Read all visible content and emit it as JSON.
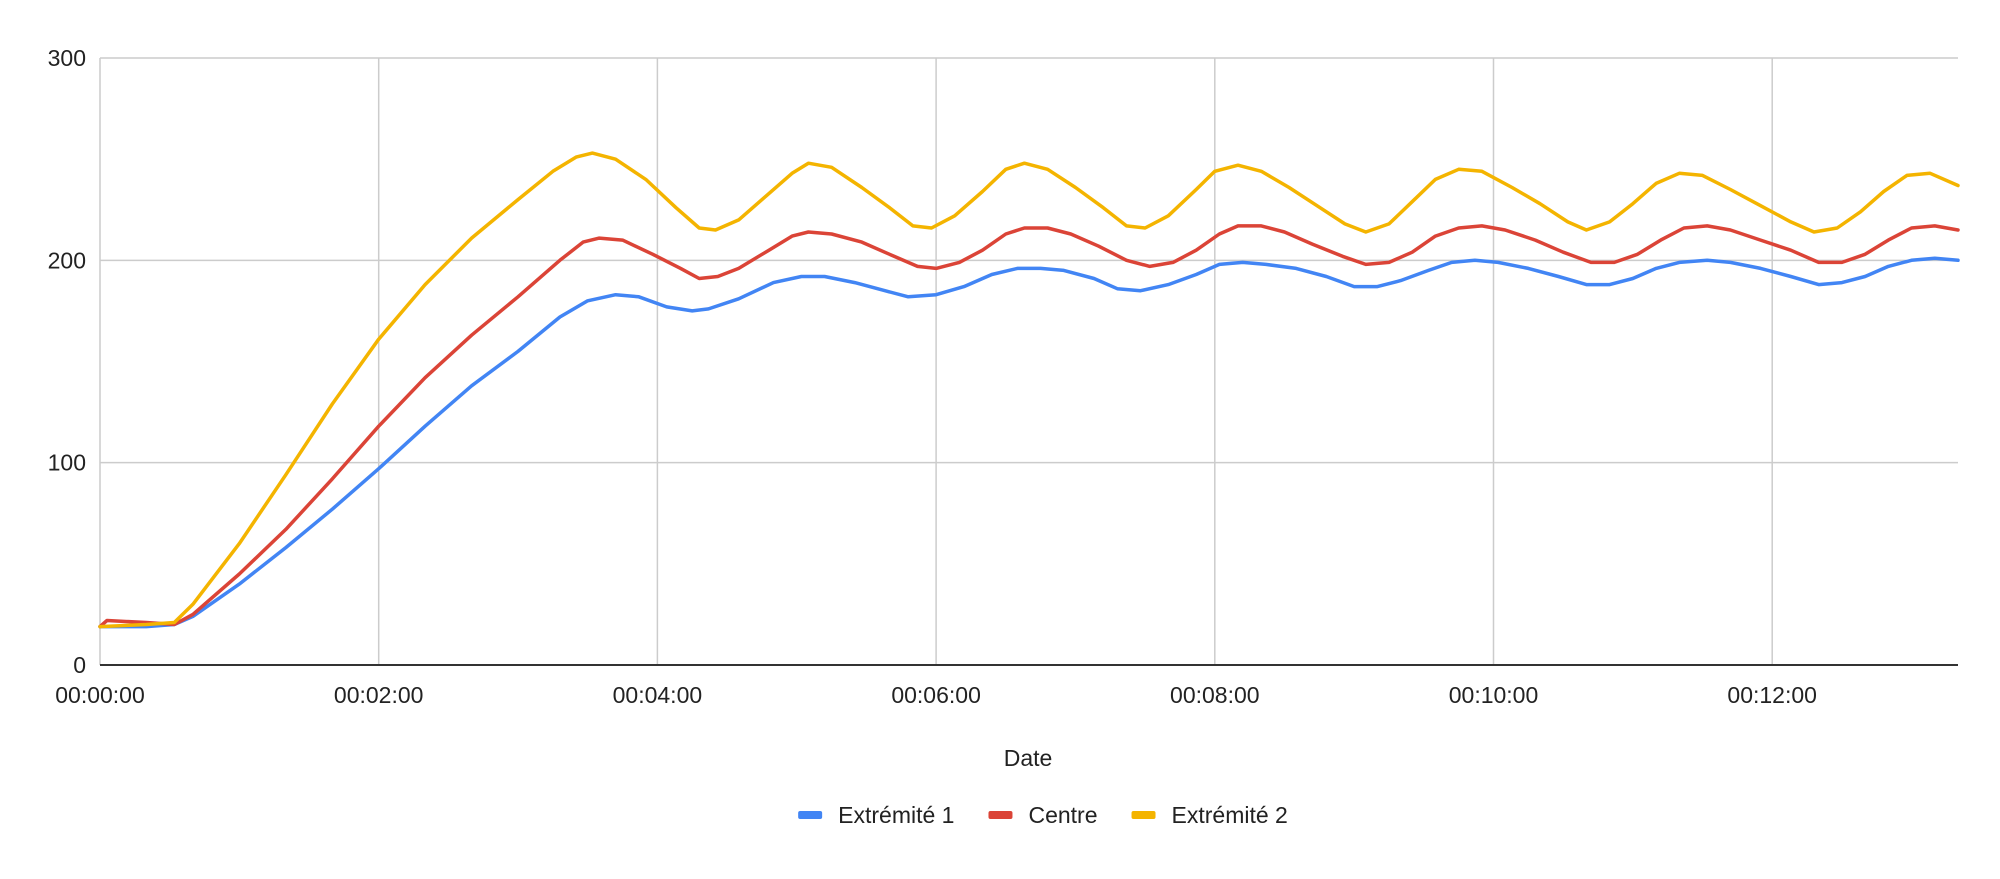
{
  "chart_data": {
    "type": "line",
    "title": "",
    "xlabel": "Date",
    "ylabel": "",
    "x_type": "time",
    "x_unit": "seconds",
    "xlim": [
      0,
      800
    ],
    "ylim": [
      0,
      300
    ],
    "x_ticks": [
      {
        "value": 0,
        "label": "00:00:00"
      },
      {
        "value": 120,
        "label": "00:02:00"
      },
      {
        "value": 240,
        "label": "00:04:00"
      },
      {
        "value": 360,
        "label": "00:06:00"
      },
      {
        "value": 480,
        "label": "00:08:00"
      },
      {
        "value": 600,
        "label": "00:10:00"
      },
      {
        "value": 720,
        "label": "00:12:00"
      }
    ],
    "y_ticks": [
      {
        "value": 0,
        "label": "0"
      },
      {
        "value": 100,
        "label": "100"
      },
      {
        "value": 200,
        "label": "200"
      },
      {
        "value": 300,
        "label": "300"
      }
    ],
    "grid": true,
    "legend_position": "bottom",
    "series": [
      {
        "name": "Extrémité 1",
        "color": "#4285F4",
        "points": [
          [
            0,
            19
          ],
          [
            20,
            19
          ],
          [
            32,
            20
          ],
          [
            40,
            24
          ],
          [
            60,
            40
          ],
          [
            80,
            58
          ],
          [
            100,
            77
          ],
          [
            120,
            97
          ],
          [
            140,
            118
          ],
          [
            160,
            138
          ],
          [
            180,
            155
          ],
          [
            198,
            172
          ],
          [
            210,
            180
          ],
          [
            222,
            183
          ],
          [
            232,
            182
          ],
          [
            244,
            177
          ],
          [
            255,
            175
          ],
          [
            262,
            176
          ],
          [
            275,
            181
          ],
          [
            290,
            189
          ],
          [
            302,
            192
          ],
          [
            312,
            192
          ],
          [
            325,
            189
          ],
          [
            338,
            185
          ],
          [
            348,
            182
          ],
          [
            360,
            183
          ],
          [
            372,
            187
          ],
          [
            384,
            193
          ],
          [
            395,
            196
          ],
          [
            405,
            196
          ],
          [
            415,
            195
          ],
          [
            428,
            191
          ],
          [
            438,
            186
          ],
          [
            448,
            185
          ],
          [
            460,
            188
          ],
          [
            472,
            193
          ],
          [
            482,
            198
          ],
          [
            492,
            199
          ],
          [
            502,
            198
          ],
          [
            515,
            196
          ],
          [
            528,
            192
          ],
          [
            540,
            187
          ],
          [
            550,
            187
          ],
          [
            560,
            190
          ],
          [
            572,
            195
          ],
          [
            582,
            199
          ],
          [
            592,
            200
          ],
          [
            602,
            199
          ],
          [
            615,
            196
          ],
          [
            628,
            192
          ],
          [
            640,
            188
          ],
          [
            650,
            188
          ],
          [
            660,
            191
          ],
          [
            670,
            196
          ],
          [
            680,
            199
          ],
          [
            692,
            200
          ],
          [
            702,
            199
          ],
          [
            715,
            196
          ],
          [
            728,
            192
          ],
          [
            740,
            188
          ],
          [
            750,
            189
          ],
          [
            760,
            192
          ],
          [
            770,
            197
          ],
          [
            780,
            200
          ],
          [
            790,
            201
          ],
          [
            800,
            200
          ]
        ]
      },
      {
        "name": "Centre",
        "color": "#DB4437",
        "points": [
          [
            0,
            19
          ],
          [
            3,
            22
          ],
          [
            20,
            21
          ],
          [
            32,
            20
          ],
          [
            40,
            25
          ],
          [
            60,
            45
          ],
          [
            80,
            67
          ],
          [
            100,
            92
          ],
          [
            120,
            118
          ],
          [
            140,
            142
          ],
          [
            160,
            163
          ],
          [
            180,
            182
          ],
          [
            198,
            200
          ],
          [
            208,
            209
          ],
          [
            215,
            211
          ],
          [
            225,
            210
          ],
          [
            238,
            203
          ],
          [
            250,
            196
          ],
          [
            258,
            191
          ],
          [
            266,
            192
          ],
          [
            275,
            196
          ],
          [
            288,
            205
          ],
          [
            298,
            212
          ],
          [
            305,
            214
          ],
          [
            315,
            213
          ],
          [
            328,
            209
          ],
          [
            340,
            203
          ],
          [
            352,
            197
          ],
          [
            360,
            196
          ],
          [
            370,
            199
          ],
          [
            380,
            205
          ],
          [
            390,
            213
          ],
          [
            398,
            216
          ],
          [
            408,
            216
          ],
          [
            418,
            213
          ],
          [
            430,
            207
          ],
          [
            442,
            200
          ],
          [
            452,
            197
          ],
          [
            462,
            199
          ],
          [
            472,
            205
          ],
          [
            482,
            213
          ],
          [
            490,
            217
          ],
          [
            500,
            217
          ],
          [
            510,
            214
          ],
          [
            522,
            208
          ],
          [
            535,
            202
          ],
          [
            545,
            198
          ],
          [
            555,
            199
          ],
          [
            565,
            204
          ],
          [
            575,
            212
          ],
          [
            585,
            216
          ],
          [
            595,
            217
          ],
          [
            605,
            215
          ],
          [
            618,
            210
          ],
          [
            630,
            204
          ],
          [
            642,
            199
          ],
          [
            652,
            199
          ],
          [
            662,
            203
          ],
          [
            672,
            210
          ],
          [
            682,
            216
          ],
          [
            692,
            217
          ],
          [
            702,
            215
          ],
          [
            715,
            210
          ],
          [
            728,
            205
          ],
          [
            740,
            199
          ],
          [
            750,
            199
          ],
          [
            760,
            203
          ],
          [
            770,
            210
          ],
          [
            780,
            216
          ],
          [
            790,
            217
          ],
          [
            800,
            215
          ]
        ]
      },
      {
        "name": "Extrémité 2",
        "color": "#F4B400",
        "points": [
          [
            0,
            19
          ],
          [
            20,
            20
          ],
          [
            32,
            21
          ],
          [
            40,
            30
          ],
          [
            60,
            60
          ],
          [
            80,
            94
          ],
          [
            100,
            129
          ],
          [
            120,
            161
          ],
          [
            140,
            188
          ],
          [
            160,
            211
          ],
          [
            180,
            230
          ],
          [
            195,
            244
          ],
          [
            205,
            251
          ],
          [
            212,
            253
          ],
          [
            222,
            250
          ],
          [
            235,
            240
          ],
          [
            248,
            226
          ],
          [
            258,
            216
          ],
          [
            265,
            215
          ],
          [
            275,
            220
          ],
          [
            288,
            233
          ],
          [
            298,
            243
          ],
          [
            305,
            248
          ],
          [
            315,
            246
          ],
          [
            328,
            236
          ],
          [
            340,
            226
          ],
          [
            350,
            217
          ],
          [
            358,
            216
          ],
          [
            368,
            222
          ],
          [
            380,
            234
          ],
          [
            390,
            245
          ],
          [
            398,
            248
          ],
          [
            408,
            245
          ],
          [
            420,
            236
          ],
          [
            432,
            226
          ],
          [
            442,
            217
          ],
          [
            450,
            216
          ],
          [
            460,
            222
          ],
          [
            472,
            235
          ],
          [
            480,
            244
          ],
          [
            490,
            247
          ],
          [
            500,
            244
          ],
          [
            512,
            236
          ],
          [
            524,
            227
          ],
          [
            536,
            218
          ],
          [
            545,
            214
          ],
          [
            555,
            218
          ],
          [
            565,
            229
          ],
          [
            575,
            240
          ],
          [
            585,
            245
          ],
          [
            595,
            244
          ],
          [
            608,
            236
          ],
          [
            620,
            228
          ],
          [
            632,
            219
          ],
          [
            640,
            215
          ],
          [
            650,
            219
          ],
          [
            660,
            228
          ],
          [
            670,
            238
          ],
          [
            680,
            243
          ],
          [
            690,
            242
          ],
          [
            702,
            235
          ],
          [
            715,
            227
          ],
          [
            728,
            219
          ],
          [
            738,
            214
          ],
          [
            748,
            216
          ],
          [
            758,
            224
          ],
          [
            768,
            234
          ],
          [
            778,
            242
          ],
          [
            788,
            243
          ],
          [
            800,
            237
          ]
        ]
      }
    ]
  }
}
